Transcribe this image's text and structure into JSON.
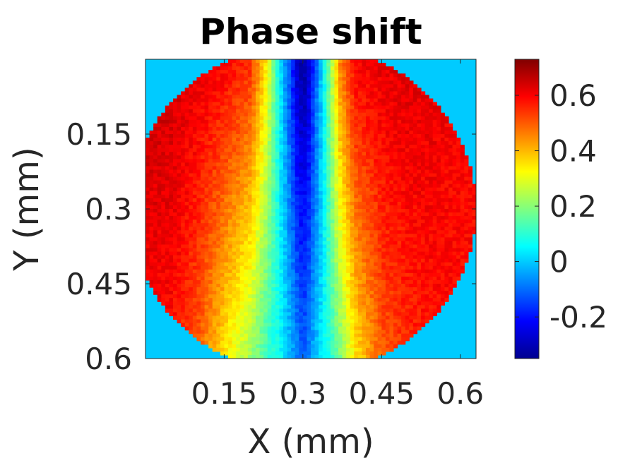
{
  "chart_data": {
    "type": "heatmap",
    "title": "Phase shift",
    "xlabel": "X (mm)",
    "ylabel": "Y (mm)",
    "xlim": [
      0,
      0.63
    ],
    "ylim": [
      0,
      0.6
    ],
    "y_inverted": true,
    "x_ticks": [
      {
        "value": 0.15,
        "label": "0.15"
      },
      {
        "value": 0.3,
        "label": "0.3"
      },
      {
        "value": 0.45,
        "label": "0.45"
      },
      {
        "value": 0.6,
        "label": "0.6"
      }
    ],
    "y_ticks": [
      {
        "value": 0.15,
        "label": "0.15"
      },
      {
        "value": 0.3,
        "label": "0.3"
      },
      {
        "value": 0.45,
        "label": "0.45"
      },
      {
        "value": 0.6,
        "label": "0.6"
      }
    ],
    "colormap": "jet",
    "clim": [
      -0.35,
      0.73
    ],
    "background_value": 0.0,
    "colorbar_ticks": [
      {
        "value": 0.6,
        "label": "0.6"
      },
      {
        "value": 0.4,
        "label": "0.4"
      },
      {
        "value": 0.2,
        "label": "0.2"
      },
      {
        "value": 0,
        "label": "0"
      },
      {
        "value": -0.2,
        "label": "-0.2"
      }
    ],
    "aperture": {
      "shape": "circle",
      "center_x": 0.3,
      "center_y": 0.3,
      "radius": 0.33
    },
    "phase_profile_across_x": {
      "x": [
        0.0,
        0.05,
        0.1,
        0.15,
        0.2,
        0.23,
        0.26,
        0.29,
        0.3,
        0.31,
        0.34,
        0.37,
        0.4,
        0.45,
        0.5,
        0.55,
        0.6,
        0.63
      ],
      "value_top": [
        0.65,
        0.65,
        0.62,
        0.6,
        0.55,
        0.35,
        0.0,
        -0.28,
        -0.32,
        -0.28,
        0.05,
        0.45,
        0.6,
        0.62,
        0.63,
        0.62,
        0.6,
        0.6
      ],
      "value_bottom": [
        0.6,
        0.58,
        0.5,
        0.35,
        0.22,
        0.12,
        0.05,
        -0.08,
        -0.12,
        -0.08,
        0.05,
        0.18,
        0.35,
        0.5,
        0.55,
        0.58,
        0.58,
        0.58
      ]
    }
  }
}
